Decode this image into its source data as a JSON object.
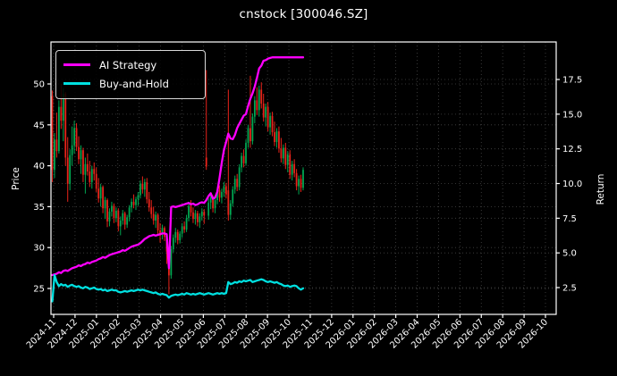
{
  "title": "cnstock [300046.SZ]",
  "colors": {
    "background": "#000000",
    "text": "#ffffff",
    "spine": "#ffffff",
    "grid": "#6a6a6a",
    "candle_up": "#00a651",
    "candle_down": "#e8231a",
    "ai_strategy": "#ff00ff",
    "buy_and_hold": "#00e0e0"
  },
  "legend": {
    "items": [
      {
        "label": "AI Strategy",
        "color": "#ff00ff"
      },
      {
        "label": "Buy-and-Hold",
        "color": "#00e0e0"
      }
    ]
  },
  "axes": {
    "left": {
      "label": "Price",
      "tick_labels": [
        "25",
        "30",
        "35",
        "40",
        "45",
        "50"
      ],
      "ticks": [
        25,
        30,
        35,
        40,
        45,
        50
      ],
      "range": [
        21.8,
        55.1
      ]
    },
    "right": {
      "label": "Return",
      "tick_labels": [
        "2.5",
        "5.0",
        "7.5",
        "10.0",
        "12.5",
        "15.0",
        "17.5"
      ],
      "ticks": [
        2.5,
        5.0,
        7.5,
        10.0,
        12.5,
        15.0,
        17.5
      ],
      "range": [
        0.57,
        20.2
      ]
    },
    "x": {
      "labels": [
        "2024-11",
        "2024-12",
        "2025-01",
        "2025-02",
        "2025-03",
        "2025-04",
        "2025-05",
        "2025-06",
        "2025-07",
        "2025-08",
        "2025-09",
        "2025-10",
        "2025-11",
        "2025-12",
        "2026-01",
        "2026-02",
        "2026-03",
        "2026-04",
        "2026-05",
        "2026-06",
        "2026-07",
        "2026-08",
        "2026-09",
        "2026-10"
      ]
    }
  },
  "chart_data": {
    "type": "candlestick+line",
    "title": "cnstock [300046.SZ]",
    "xlabel": "",
    "ylabel_left": "Price",
    "ylabel_right": "Return",
    "x_axis_span": [
      "2024-11",
      "2026-10"
    ],
    "data_span": [
      "2024-11",
      "2025-10"
    ],
    "grid": "dotted, vertical per month, horizontal per tick of both y axes",
    "legend_position": "upper left",
    "candles_note": "daily OHLC approximated at ~2-day resolution, left Price axis",
    "candles_ohlc": [
      [
        48.5,
        49.2,
        38.0,
        39.5
      ],
      [
        39.5,
        44.0,
        38.5,
        43.2
      ],
      [
        43.2,
        46.5,
        41.0,
        41.8
      ],
      [
        41.8,
        48.0,
        41.5,
        47.2
      ],
      [
        47.2,
        50.0,
        44.5,
        45.5
      ],
      [
        45.5,
        49.5,
        43.0,
        48.8
      ],
      [
        48.8,
        49.0,
        40.0,
        41.0
      ],
      [
        41.0,
        43.5,
        35.6,
        37.8
      ],
      [
        37.8,
        42.0,
        37.0,
        41.3
      ],
      [
        41.3,
        44.8,
        40.0,
        42.5
      ],
      [
        42.5,
        45.5,
        41.5,
        44.6
      ],
      [
        44.6,
        45.2,
        41.8,
        42.3
      ],
      [
        42.3,
        43.6,
        40.2,
        40.8
      ],
      [
        40.8,
        42.5,
        39.0,
        41.9
      ],
      [
        41.9,
        42.2,
        38.0,
        38.9
      ],
      [
        38.9,
        41.0,
        36.6,
        40.2
      ],
      [
        40.2,
        41.5,
        38.8,
        39.3
      ],
      [
        39.3,
        40.6,
        37.4,
        38.0
      ],
      [
        38.0,
        40.0,
        37.2,
        39.6
      ],
      [
        39.6,
        40.4,
        38.2,
        39.0
      ],
      [
        39.0,
        39.8,
        36.8,
        37.2
      ],
      [
        37.2,
        38.5,
        35.5,
        36.0
      ],
      [
        36.0,
        37.8,
        35.0,
        37.4
      ],
      [
        37.4,
        37.6,
        34.2,
        34.8
      ],
      [
        34.8,
        36.2,
        33.5,
        35.8
      ],
      [
        35.8,
        36.0,
        32.5,
        33.2
      ],
      [
        33.2,
        34.8,
        32.6,
        34.4
      ],
      [
        34.4,
        35.6,
        33.8,
        35.1
      ],
      [
        35.1,
        35.4,
        33.0,
        33.6
      ],
      [
        33.6,
        34.9,
        33.1,
        34.5
      ],
      [
        34.5,
        34.8,
        32.0,
        32.6
      ],
      [
        32.6,
        33.8,
        31.5,
        33.3
      ],
      [
        33.3,
        34.6,
        32.8,
        34.2
      ],
      [
        34.2,
        34.4,
        32.2,
        32.8
      ],
      [
        32.8,
        34.0,
        32.4,
        33.7
      ],
      [
        33.7,
        35.2,
        33.2,
        34.9
      ],
      [
        34.9,
        36.0,
        34.3,
        35.6
      ],
      [
        35.6,
        36.5,
        34.8,
        35.2
      ],
      [
        35.2,
        36.2,
        34.6,
        35.9
      ],
      [
        35.9,
        36.8,
        35.1,
        36.4
      ],
      [
        36.4,
        38.2,
        36.0,
        37.8
      ],
      [
        37.8,
        38.7,
        36.6,
        37.1
      ],
      [
        37.1,
        38.4,
        36.2,
        38.0
      ],
      [
        38.0,
        38.5,
        35.4,
        35.9
      ],
      [
        35.9,
        36.8,
        34.4,
        34.9
      ],
      [
        34.9,
        35.8,
        33.6,
        34.1
      ],
      [
        34.1,
        35.0,
        32.8,
        33.3
      ],
      [
        33.3,
        34.4,
        32.4,
        34.0
      ],
      [
        34.0,
        34.2,
        31.6,
        32.1
      ],
      [
        32.1,
        33.0,
        30.6,
        31.6
      ],
      [
        31.6,
        32.8,
        31.0,
        32.4
      ],
      [
        32.4,
        32.6,
        30.8,
        31.3
      ],
      [
        31.3,
        31.5,
        28.0,
        29.5
      ],
      [
        29.5,
        30.0,
        24.3,
        26.6
      ],
      [
        26.6,
        30.2,
        26.2,
        29.8
      ],
      [
        29.8,
        31.6,
        29.4,
        31.2
      ],
      [
        31.2,
        32.4,
        30.6,
        31.9
      ],
      [
        31.9,
        32.2,
        30.4,
        30.9
      ],
      [
        30.9,
        32.0,
        30.5,
        31.7
      ],
      [
        31.7,
        33.0,
        31.2,
        32.6
      ],
      [
        32.6,
        33.2,
        31.8,
        32.2
      ],
      [
        32.2,
        34.0,
        31.9,
        33.6
      ],
      [
        33.6,
        35.6,
        33.2,
        35.1
      ],
      [
        35.1,
        35.8,
        33.8,
        34.3
      ],
      [
        34.3,
        34.9,
        33.0,
        33.5
      ],
      [
        33.5,
        34.6,
        32.8,
        34.2
      ],
      [
        34.2,
        34.5,
        32.6,
        33.1
      ],
      [
        33.1,
        34.2,
        32.4,
        33.8
      ],
      [
        33.8,
        34.8,
        33.3,
        34.4
      ],
      [
        34.4,
        34.7,
        32.9,
        33.9
      ],
      [
        41.0,
        51.7,
        39.5,
        39.9
      ],
      [
        33.9,
        36.0,
        33.4,
        35.5
      ],
      [
        35.5,
        36.6,
        34.7,
        36.2
      ],
      [
        36.2,
        36.4,
        34.3,
        34.8
      ],
      [
        34.8,
        36.2,
        34.2,
        35.8
      ],
      [
        35.8,
        37.4,
        35.3,
        37.0
      ],
      [
        37.0,
        37.6,
        35.6,
        36.1
      ],
      [
        36.1,
        37.2,
        35.4,
        36.8
      ],
      [
        36.8,
        38.0,
        36.2,
        37.5
      ],
      [
        37.5,
        37.9,
        36.0,
        36.5
      ],
      [
        37.0,
        49.3,
        33.3,
        34.0
      ],
      [
        34.0,
        35.8,
        33.4,
        35.4
      ],
      [
        35.4,
        37.5,
        35.0,
        37.1
      ],
      [
        37.1,
        38.8,
        36.6,
        38.4
      ],
      [
        38.4,
        39.0,
        36.9,
        37.4
      ],
      [
        37.4,
        40.2,
        37.0,
        39.8
      ],
      [
        39.8,
        41.6,
        39.2,
        41.2
      ],
      [
        41.2,
        42.0,
        39.8,
        40.3
      ],
      [
        40.3,
        43.2,
        40.0,
        42.8
      ],
      [
        42.8,
        45.0,
        42.2,
        44.6
      ],
      [
        44.6,
        51.0,
        42.2,
        43.0
      ],
      [
        43.0,
        46.4,
        42.6,
        46.0
      ],
      [
        46.0,
        48.5,
        45.2,
        48.0
      ],
      [
        48.0,
        49.6,
        46.2,
        46.8
      ],
      [
        46.8,
        49.8,
        46.0,
        49.3
      ],
      [
        49.3,
        50.2,
        47.0,
        47.6
      ],
      [
        47.6,
        48.8,
        45.4,
        45.9
      ],
      [
        45.9,
        47.6,
        44.8,
        47.2
      ],
      [
        47.2,
        47.8,
        44.2,
        44.7
      ],
      [
        44.7,
        46.5,
        43.8,
        46.1
      ],
      [
        46.1,
        46.6,
        43.6,
        44.1
      ],
      [
        44.1,
        45.4,
        42.4,
        42.9
      ],
      [
        42.9,
        44.6,
        42.2,
        44.2
      ],
      [
        44.2,
        44.8,
        41.6,
        42.1
      ],
      [
        42.1,
        43.4,
        40.4,
        40.9
      ],
      [
        40.9,
        42.6,
        40.2,
        42.2
      ],
      [
        42.2,
        42.8,
        39.6,
        40.1
      ],
      [
        40.1,
        41.8,
        39.2,
        41.4
      ],
      [
        41.4,
        41.9,
        38.4,
        38.9
      ],
      [
        38.9,
        40.6,
        38.2,
        40.2
      ],
      [
        40.2,
        40.8,
        38.6,
        39.1
      ],
      [
        39.1,
        39.6,
        37.0,
        37.5
      ],
      [
        37.5,
        38.8,
        36.5,
        38.4
      ],
      [
        38.4,
        38.9,
        36.8,
        37.3
      ],
      [
        37.3,
        39.8,
        37.0,
        39.5
      ]
    ],
    "series": [
      {
        "name": "AI Strategy",
        "axis": "right",
        "color": "#ff00ff",
        "values": [
          3.4,
          3.45,
          3.5,
          3.6,
          3.55,
          3.7,
          3.75,
          3.7,
          3.8,
          3.9,
          3.95,
          4.0,
          4.1,
          4.05,
          4.15,
          4.2,
          4.3,
          4.25,
          4.35,
          4.4,
          4.45,
          4.55,
          4.6,
          4.7,
          4.65,
          4.75,
          4.85,
          4.9,
          4.95,
          5.0,
          5.05,
          5.1,
          5.2,
          5.15,
          5.25,
          5.35,
          5.45,
          5.5,
          5.55,
          5.6,
          5.7,
          5.85,
          6.0,
          6.1,
          6.2,
          6.25,
          6.3,
          6.25,
          6.3,
          6.35,
          6.4,
          6.4,
          6.35,
          3.9,
          8.3,
          8.35,
          8.3,
          8.35,
          8.4,
          8.45,
          8.5,
          8.55,
          8.6,
          8.5,
          8.55,
          8.45,
          8.5,
          8.6,
          8.65,
          8.6,
          8.8,
          9.1,
          9.3,
          8.9,
          9.0,
          9.4,
          10.4,
          11.5,
          12.4,
          13.0,
          13.6,
          13.25,
          13.2,
          13.5,
          14.0,
          14.3,
          14.6,
          14.9,
          15.0,
          15.6,
          16.1,
          16.5,
          17.0,
          17.6,
          18.3,
          18.5,
          18.85,
          18.9,
          19.0,
          19.05,
          19.1,
          19.1,
          19.1,
          19.1,
          19.1,
          19.1,
          19.1,
          19.1,
          19.1,
          19.1,
          19.1,
          19.1,
          19.1,
          19.1,
          19.1
        ]
      },
      {
        "name": "Buy-and-Hold",
        "axis": "right",
        "color": "#00e0e0",
        "values": [
          1.5,
          3.4,
          2.9,
          2.6,
          2.75,
          2.65,
          2.7,
          2.55,
          2.65,
          2.7,
          2.6,
          2.55,
          2.6,
          2.5,
          2.45,
          2.55,
          2.5,
          2.4,
          2.45,
          2.5,
          2.4,
          2.35,
          2.4,
          2.3,
          2.35,
          2.25,
          2.3,
          2.35,
          2.3,
          2.3,
          2.2,
          2.15,
          2.2,
          2.25,
          2.2,
          2.25,
          2.3,
          2.25,
          2.3,
          2.35,
          2.3,
          2.35,
          2.3,
          2.25,
          2.2,
          2.15,
          2.1,
          2.15,
          2.05,
          2.0,
          2.05,
          2.0,
          1.95,
          1.78,
          1.9,
          1.95,
          2.0,
          1.95,
          2.0,
          2.05,
          2.0,
          2.1,
          2.05,
          2.0,
          2.05,
          2.0,
          2.05,
          2.1,
          2.05,
          2.0,
          2.05,
          2.1,
          2.05,
          2.0,
          2.05,
          2.1,
          2.05,
          2.1,
          2.05,
          2.1,
          2.9,
          2.75,
          2.8,
          2.9,
          2.85,
          2.95,
          2.9,
          3.0,
          2.95,
          3.0,
          3.05,
          2.9,
          2.95,
          3.0,
          3.05,
          3.1,
          3.05,
          2.95,
          2.9,
          2.95,
          2.9,
          2.85,
          2.9,
          2.8,
          2.75,
          2.65,
          2.6,
          2.65,
          2.55,
          2.6,
          2.65,
          2.6,
          2.45,
          2.35,
          2.45
        ]
      }
    ]
  }
}
